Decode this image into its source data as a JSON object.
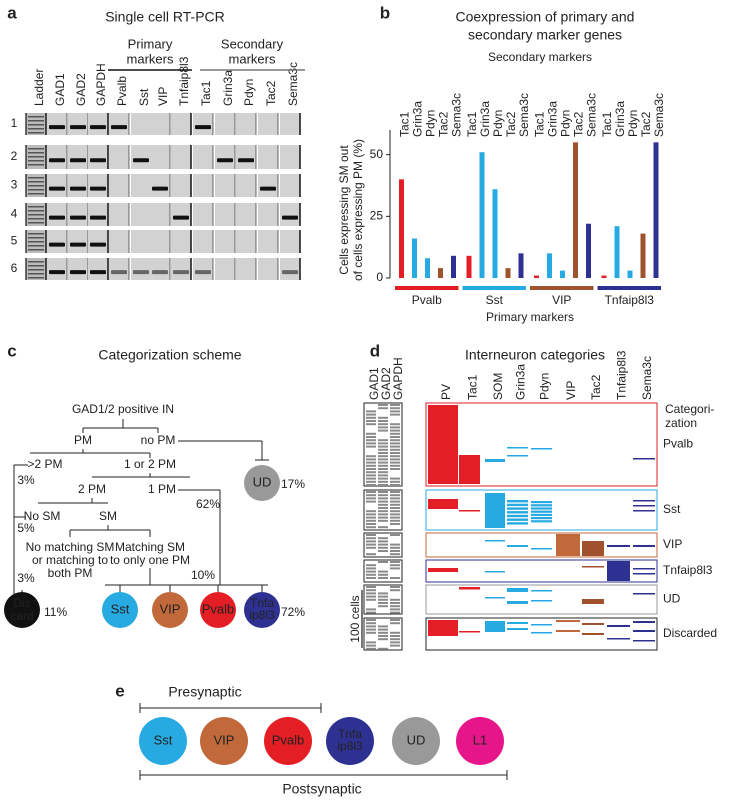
{
  "panel_a": {
    "letter": "a",
    "title": "Single cell RT-PCR",
    "lanes": [
      "Ladder",
      "GAD1",
      "GAD2",
      "GAPDH",
      "Pvalb",
      "Sst",
      "VIP",
      "Tnfaip8l3",
      "Tac1",
      "Grin3a",
      "Pdyn",
      "Tac2",
      "Sema3c"
    ],
    "primary_label": [
      "Primary",
      "markers"
    ],
    "secondary_label": [
      "Secondary",
      "markers"
    ],
    "rows": [
      "1",
      "2",
      "3",
      "4",
      "5",
      "6"
    ]
  },
  "chart_data": {
    "type": "bar",
    "letter": "b",
    "title": [
      "Coexpression of primary and",
      "secondary marker genes"
    ],
    "subtitle": "Secondary markers",
    "categories": [
      "Pvalb",
      "Sst",
      "VIP",
      "Tnfaip8l3"
    ],
    "category_colors": [
      "#e31e24",
      "#27aae1",
      "#a0522d",
      "#2e3192"
    ],
    "series": [
      {
        "name": "Tac1",
        "color": "#e31e24",
        "values": [
          40,
          9,
          1,
          1
        ]
      },
      {
        "name": "Grin3a",
        "color": "#27aae1",
        "values": [
          16,
          51,
          10,
          21
        ]
      },
      {
        "name": "Pdyn",
        "color": "#27aae1",
        "values": [
          8,
          36,
          3,
          3
        ]
      },
      {
        "name": "Tac2",
        "color": "#a0522d",
        "values": [
          4,
          4,
          55,
          18
        ]
      },
      {
        "name": "Sema3c",
        "color": "#2e3192",
        "values": [
          9,
          10,
          22,
          55
        ]
      }
    ],
    "ylabel": [
      "Cells expressing SM out",
      "of cells expressing PM (%)"
    ],
    "xlabel": "Primary markers",
    "ylim": [
      0,
      60
    ],
    "yticks": [
      0,
      25,
      50
    ]
  },
  "panel_c": {
    "letter": "c",
    "title": "Categorization scheme",
    "root": "GAD1/2 positive IN",
    "pm": "PM",
    "no_pm": "no PM",
    "gt2_pm": ">2 PM",
    "one_or_two_pm": "1 or 2 PM",
    "two_pm": "2 PM",
    "one_pm": "1 PM",
    "no_sm": "No SM",
    "sm": "SM",
    "no_matching": [
      "No matching SM",
      "or matching to",
      "both PM"
    ],
    "matching": [
      "Matching SM",
      "to only one PM"
    ],
    "pct_gt2": "3%",
    "pct_one_pm": "62%",
    "pct_no_sm": "5%",
    "pct_no_matching": "3%",
    "pct_matching": "10%",
    "ud": "UD",
    "pct_ud": "17%",
    "discard": [
      "Dis",
      "card"
    ],
    "pct_discard": "11%",
    "groups": [
      [
        "Sst"
      ],
      [
        "VIP"
      ],
      [
        "Pvalb"
      ],
      [
        "Tnfa",
        "ip8l3"
      ]
    ],
    "pct_groups": "72%"
  },
  "panel_d": {
    "letter": "d",
    "title": "Interneuron categories",
    "controls": [
      "GAD1",
      "GAD2",
      "GAPDH"
    ],
    "genes": [
      "PV",
      "Tac1",
      "SOM",
      "Grin3a",
      "Pdyn",
      "VIP",
      "Tac2",
      "Tnfaip8l3",
      "Sema3c"
    ],
    "categorization": [
      "Categori-",
      "zation"
    ],
    "rows": [
      "Pvalb",
      "Sst",
      "VIP",
      "Tnfaip8l3",
      "UD",
      "Discarded"
    ],
    "scale": "100 cells"
  },
  "panel_e": {
    "letter": "e",
    "presynaptic": "Presynaptic",
    "postsynaptic": "Postsynaptic",
    "groups": [
      [
        "Sst"
      ],
      [
        "VIP"
      ],
      [
        "Pvalb"
      ],
      [
        "Tnfa",
        "ip8l3"
      ],
      [
        "UD"
      ],
      [
        "L1"
      ]
    ]
  }
}
